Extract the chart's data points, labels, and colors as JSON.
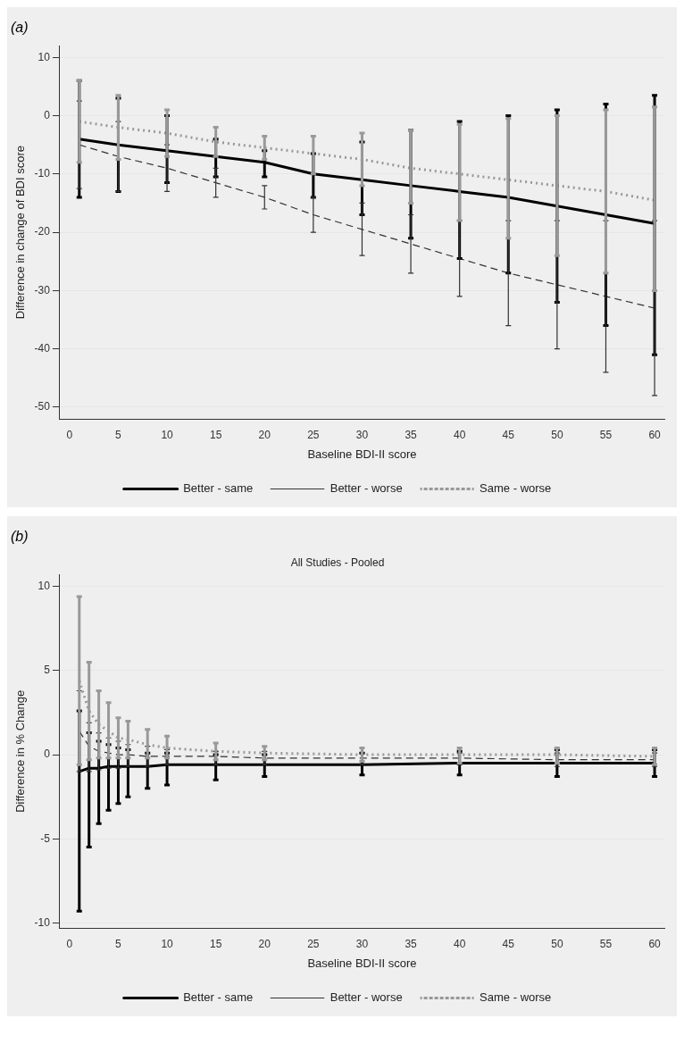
{
  "chart_data": [
    {
      "type": "line",
      "title": "(a)",
      "xlabel": "Baseline BDI-II score",
      "ylabel": "Difference in change of BDI score",
      "x": [
        1,
        5,
        10,
        15,
        20,
        25,
        30,
        35,
        40,
        45,
        50,
        55,
        60
      ],
      "xlim": [
        -1,
        61
      ],
      "xticks": [
        0,
        5,
        10,
        15,
        20,
        25,
        30,
        35,
        40,
        45,
        50,
        55,
        60
      ],
      "ylim": [
        -52,
        12
      ],
      "yticks": [
        -50,
        -40,
        -30,
        -20,
        -10,
        0,
        10
      ],
      "grid": "y",
      "legend": "bottom",
      "marker": "none",
      "series": [
        {
          "name": "Better - same",
          "color": "#000000",
          "line_style": "solid",
          "values": [
            -4,
            -5,
            -6,
            -7,
            -8,
            -10,
            -11,
            -12,
            -13,
            -14,
            -15.5,
            -17,
            -18.5
          ],
          "errors": [
            [
              -14,
              6
            ],
            [
              -13,
              3
            ],
            [
              -11.5,
              0
            ],
            [
              -10.5,
              -4
            ],
            [
              -10.5,
              -6
            ],
            [
              -14,
              -6.5
            ],
            [
              -17,
              -4.5
            ],
            [
              -21,
              -2.5
            ],
            [
              -24.5,
              -1
            ],
            [
              -27,
              0
            ],
            [
              -32,
              1
            ],
            [
              -36,
              2
            ],
            [
              -41,
              3.5
            ]
          ]
        },
        {
          "name": "Better - worse",
          "color": "#333333",
          "line_style": "dashed",
          "values": [
            -5,
            -7,
            -9,
            -11.5,
            -14,
            -17,
            -19.5,
            -22,
            -24.5,
            -27,
            -29,
            -31,
            -33
          ],
          "errors": [
            [
              -12.5,
              2.5
            ],
            [
              -13,
              -1
            ],
            [
              -13,
              -5
            ],
            [
              -14,
              -9
            ],
            [
              -16,
              -12
            ],
            [
              -20,
              -14
            ],
            [
              -24,
              -15
            ],
            [
              -27,
              -17
            ],
            [
              -31,
              -18
            ],
            [
              -36,
              -18
            ],
            [
              -40,
              -18
            ],
            [
              -44,
              -18
            ],
            [
              -48,
              -18
            ]
          ]
        },
        {
          "name": "Same - worse",
          "color": "#999999",
          "line_style": "dotted",
          "values": [
            -1,
            -2,
            -3,
            -4.5,
            -5.5,
            -6.5,
            -7.5,
            -9,
            -10,
            -11,
            -12,
            -13,
            -14.5
          ],
          "errors": [
            [
              -8,
              6
            ],
            [
              -7.5,
              3.5
            ],
            [
              -7,
              1
            ],
            [
              -7,
              -2
            ],
            [
              -7.5,
              -3.5
            ],
            [
              -10,
              -3.5
            ],
            [
              -12,
              -3
            ],
            [
              -15,
              -2.5
            ],
            [
              -18,
              -1.5
            ],
            [
              -21,
              -0.5
            ],
            [
              -24,
              0
            ],
            [
              -27,
              1
            ],
            [
              -30,
              1.5
            ]
          ]
        }
      ]
    },
    {
      "type": "line",
      "title": "(b)",
      "subtitle": "All Studies - Pooled",
      "xlabel": "Baseline BDI-II score",
      "ylabel": "Difference in % Change",
      "x": [
        1,
        2,
        3,
        4,
        5,
        6,
        8,
        10,
        15,
        20,
        30,
        40,
        50,
        60
      ],
      "xlim": [
        -1,
        61
      ],
      "xticks": [
        0,
        5,
        10,
        15,
        20,
        25,
        30,
        35,
        40,
        45,
        50,
        55,
        60
      ],
      "ylim": [
        -10.3,
        10.7
      ],
      "yticks": [
        -10,
        -5,
        0,
        5,
        10
      ],
      "grid": "y",
      "legend": "bottom",
      "marker": "none",
      "series": [
        {
          "name": "Better - same",
          "color": "#000000",
          "line_style": "solid",
          "values": [
            -1,
            -0.8,
            -0.8,
            -0.7,
            -0.7,
            -0.7,
            -0.7,
            -0.6,
            -0.6,
            -0.6,
            -0.6,
            -0.5,
            -0.5,
            -0.5
          ],
          "errors": [
            [
              -9.3,
              2.6
            ],
            [
              -5.5,
              1.3
            ],
            [
              -4.1,
              0.8
            ],
            [
              -3.3,
              0.6
            ],
            [
              -2.9,
              0.4
            ],
            [
              -2.5,
              0.3
            ],
            [
              -2,
              0.1
            ],
            [
              -1.8,
              0.1
            ],
            [
              -1.5,
              0
            ],
            [
              -1.3,
              0
            ],
            [
              -1.2,
              0.1
            ],
            [
              -1.2,
              0.2
            ],
            [
              -1.3,
              0.3
            ],
            [
              -1.3,
              0.3
            ]
          ]
        },
        {
          "name": "Better - worse",
          "color": "#333333",
          "line_style": "dashed",
          "values": [
            1.4,
            0.5,
            0.2,
            0.1,
            0,
            0,
            -0.1,
            -0.1,
            -0.1,
            -0.2,
            -0.2,
            -0.2,
            -0.3,
            -0.3
          ],
          "errors": [
            [
              -1,
              3.8
            ],
            [
              -1,
              1.9
            ],
            [
              -0.9,
              1.3
            ],
            [
              -0.8,
              1
            ],
            [
              -0.8,
              0.8
            ],
            [
              -0.7,
              0.6
            ],
            [
              -0.7,
              0.5
            ],
            [
              -0.6,
              0.3
            ],
            [
              -0.6,
              0.2
            ],
            [
              -0.6,
              0.2
            ],
            [
              -0.6,
              0.1
            ],
            [
              -0.6,
              0.1
            ],
            [
              -0.7,
              0.1
            ],
            [
              -0.7,
              0.1
            ]
          ]
        },
        {
          "name": "Same - worse",
          "color": "#999999",
          "line_style": "dotted",
          "values": [
            4.4,
            2.6,
            1.8,
            1.4,
            1,
            0.9,
            0.6,
            0.4,
            0.2,
            0.1,
            0,
            0,
            0,
            -0.1
          ],
          "errors": [
            [
              -0.6,
              9.4
            ],
            [
              -0.3,
              5.5
            ],
            [
              -0.2,
              3.8
            ],
            [
              -0.2,
              3.1
            ],
            [
              -0.2,
              2.2
            ],
            [
              -0.2,
              2
            ],
            [
              -0.2,
              1.5
            ],
            [
              -0.2,
              1.1
            ],
            [
              -0.3,
              0.7
            ],
            [
              -0.3,
              0.5
            ],
            [
              -0.4,
              0.4
            ],
            [
              -0.5,
              0.4
            ],
            [
              -0.5,
              0.4
            ],
            [
              -0.6,
              0.4
            ]
          ]
        }
      ]
    }
  ]
}
